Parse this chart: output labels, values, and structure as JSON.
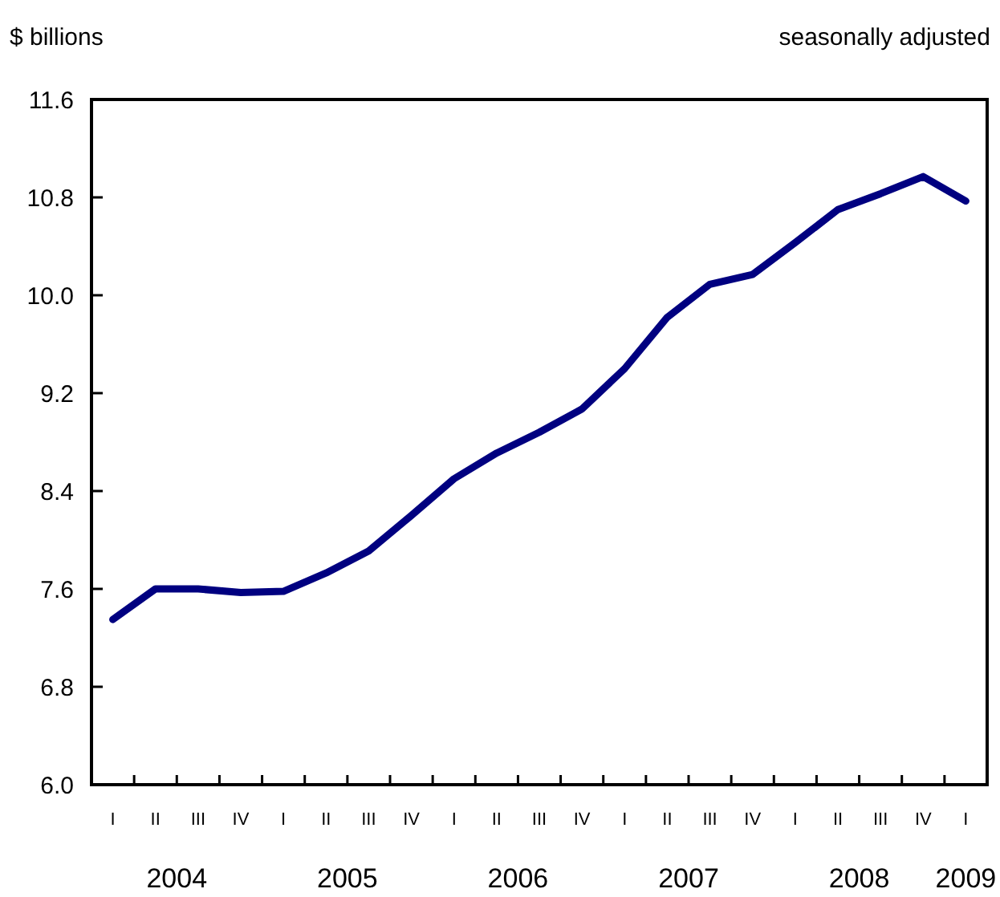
{
  "chart_data": {
    "type": "line",
    "ylabel": "$ billions",
    "subtitle": "seasonally adjusted",
    "categories": [
      "I",
      "II",
      "III",
      "IV",
      "I",
      "II",
      "III",
      "IV",
      "I",
      "II",
      "III",
      "IV",
      "I",
      "II",
      "III",
      "IV",
      "I",
      "II",
      "III",
      "IV",
      "I"
    ],
    "series": [
      {
        "color": "#000080",
        "values": [
          7.35,
          7.6,
          7.6,
          7.57,
          7.58,
          7.73,
          7.91,
          8.2,
          8.5,
          8.71,
          8.88,
          9.07,
          9.4,
          9.82,
          10.09,
          10.17,
          10.43,
          10.7,
          10.83,
          10.97,
          10.77
        ]
      }
    ],
    "ylim": [
      6.0,
      11.6
    ],
    "yticks": [
      {
        "value": 6.0,
        "label": "6.0"
      },
      {
        "value": 6.8,
        "label": "6.8"
      },
      {
        "value": 7.6,
        "label": "7.6"
      },
      {
        "value": 8.4,
        "label": "8.4"
      },
      {
        "value": 9.2,
        "label": "9.2"
      },
      {
        "value": 10.0,
        "label": "10.0"
      },
      {
        "value": 10.8,
        "label": "10.8"
      },
      {
        "value": 11.6,
        "label": "11.6"
      }
    ],
    "annotations": [
      "2004",
      "2005",
      "2006",
      "2007",
      "2008",
      "2009"
    ],
    "line_style": "solid",
    "marker": "none"
  }
}
